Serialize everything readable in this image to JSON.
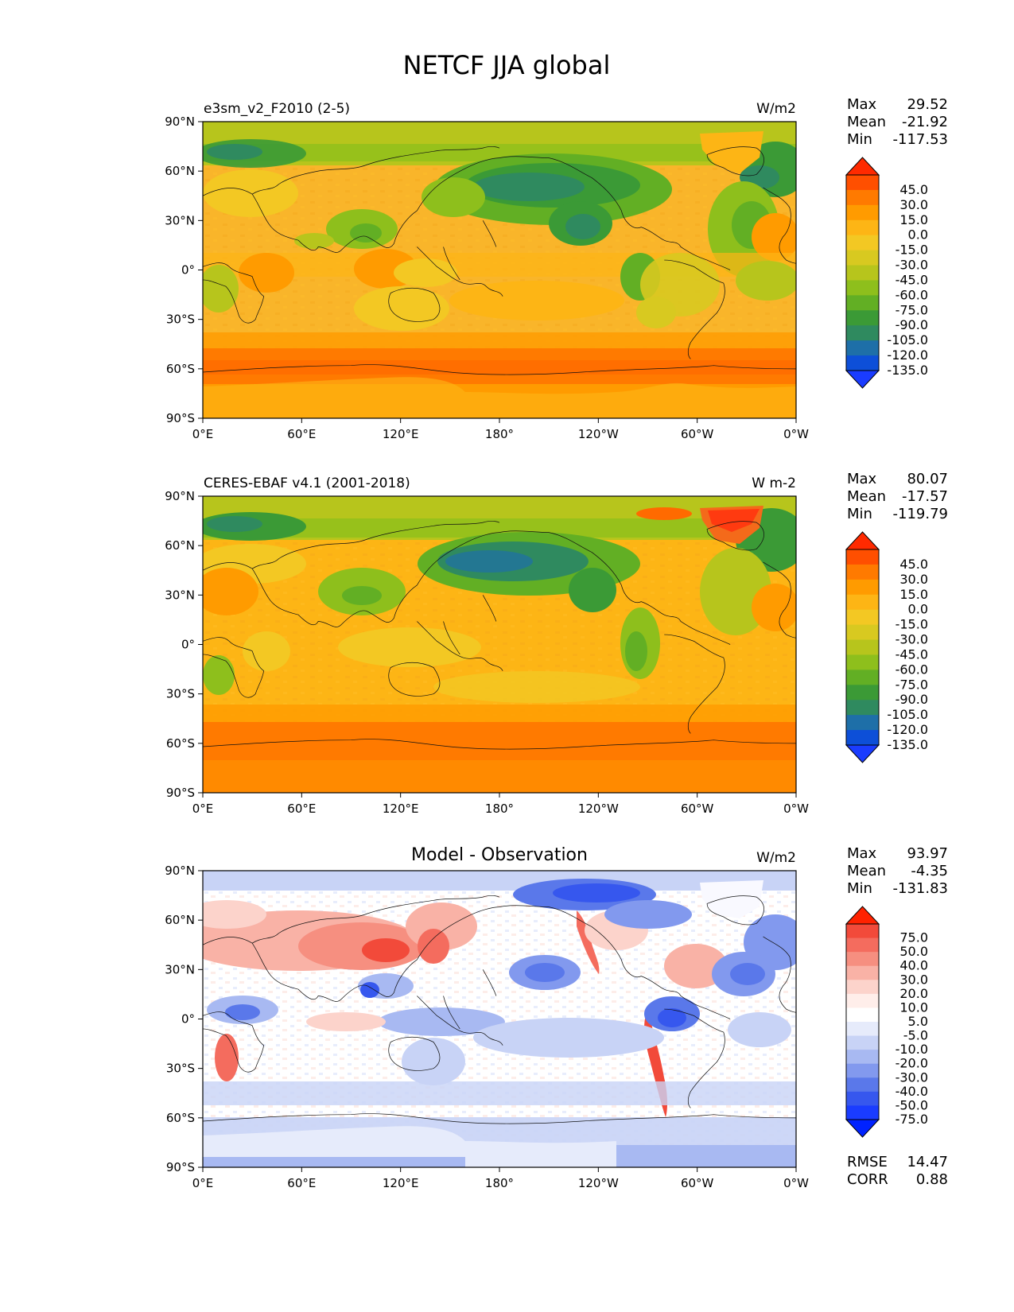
{
  "title": "NETCF JJA global",
  "lat_ticks": [
    "90°N",
    "60°N",
    "30°N",
    "0°",
    "30°S",
    "60°S",
    "90°S"
  ],
  "lon_ticks": [
    "0°E",
    "60°E",
    "120°E",
    "180°",
    "120°W",
    "60°W",
    "0°W"
  ],
  "panels": [
    {
      "name": "test",
      "left_title": "e3sm_v2_F2010 (2-5)",
      "center_title": "",
      "units": "W/m2",
      "stats": [
        [
          "Max",
          "29.52"
        ],
        [
          "Mean",
          "-21.92"
        ],
        [
          "Min",
          "-117.53"
        ]
      ],
      "colorbar": {
        "labels": [
          "45.0",
          "30.0",
          "15.0",
          "0.0",
          "-15.0",
          "-30.0",
          "-45.0",
          "-60.0",
          "-75.0",
          "-90.0",
          "-105.0",
          "-120.0",
          "-135.0"
        ],
        "colors": [
          "#ff2a00",
          "#ff4f00",
          "#ff7a00",
          "#ff9b00",
          "#fdb515",
          "#f3c823",
          "#d8c920",
          "#b7c51c",
          "#8ebf1c",
          "#62af24",
          "#3b9a36",
          "#2f8a5f",
          "#1e6fa8",
          "#0d4fd8",
          "#1a3cff"
        ]
      }
    },
    {
      "name": "reference",
      "left_title": "CERES-EBAF v4.1 (2001-2018)",
      "center_title": "",
      "units": "W m-2",
      "stats": [
        [
          "Max",
          "80.07"
        ],
        [
          "Mean",
          "-17.57"
        ],
        [
          "Min",
          "-119.79"
        ]
      ],
      "colorbar": {
        "labels": [
          "45.0",
          "30.0",
          "15.0",
          "0.0",
          "-15.0",
          "-30.0",
          "-45.0",
          "-60.0",
          "-75.0",
          "-90.0",
          "-105.0",
          "-120.0",
          "-135.0"
        ],
        "colors": [
          "#ff2a00",
          "#ff4f00",
          "#ff7a00",
          "#ff9b00",
          "#fdb515",
          "#f3c823",
          "#d8c920",
          "#b7c51c",
          "#8ebf1c",
          "#62af24",
          "#3b9a36",
          "#2f8a5f",
          "#1e6fa8",
          "#0d4fd8",
          "#1a3cff"
        ]
      }
    },
    {
      "name": "diff",
      "left_title": "",
      "center_title": "Model - Observation",
      "units": "W/m2",
      "stats": [
        [
          "Max",
          "93.97"
        ],
        [
          "Mean",
          "-4.35"
        ],
        [
          "Min",
          "-131.83"
        ]
      ],
      "metrics": [
        [
          "RMSE",
          "14.47"
        ],
        [
          "CORR",
          "0.88"
        ]
      ],
      "colorbar": {
        "labels": [
          "75.0",
          "50.0",
          "40.0",
          "30.0",
          "20.0",
          "10.0",
          "5.0",
          "-5.0",
          "-10.0",
          "-20.0",
          "-30.0",
          "-40.0",
          "-50.0",
          "-75.0"
        ],
        "colors": [
          "#ff2200",
          "#f24a3a",
          "#f46c5e",
          "#f68f80",
          "#f9b2a6",
          "#fcd3cb",
          "#ffeeea",
          "#ffffff",
          "#e6ebfb",
          "#c8d3f6",
          "#a8b9f2",
          "#8299ee",
          "#5a78ea",
          "#3657ee",
          "#1a3cff",
          "#0022ff"
        ]
      }
    }
  ]
}
